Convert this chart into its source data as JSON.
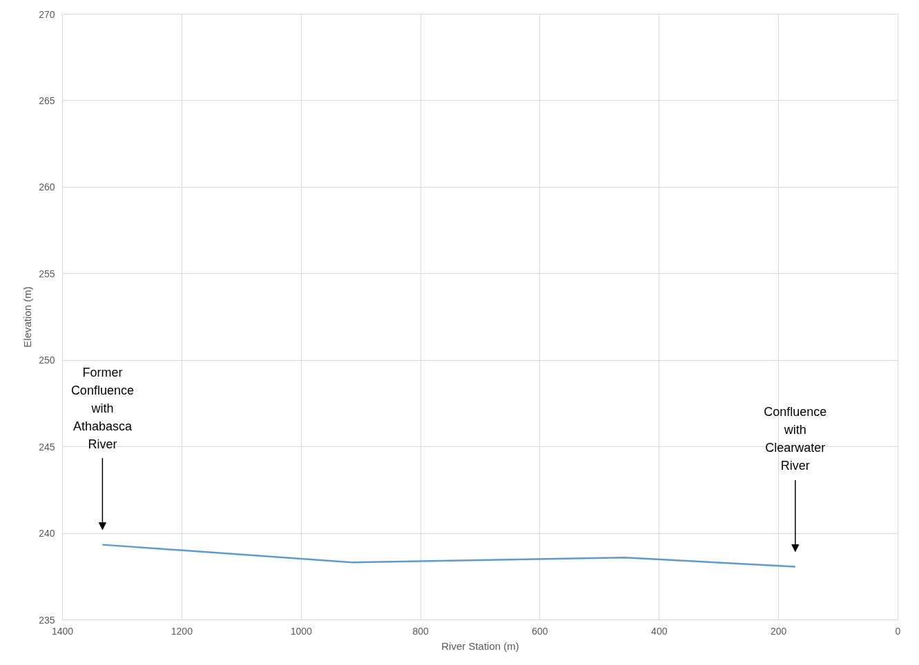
{
  "chart_data": {
    "type": "line",
    "xlabel": "River Station (m)",
    "ylabel": "Elevation (m)",
    "x": [
      1333,
      914,
      458,
      172
    ],
    "series": [
      {
        "color": "#5b9bd5",
        "values": [
          239.34,
          238.32,
          238.6,
          238.07
        ]
      }
    ],
    "xlim": [
      1400,
      0
    ],
    "xticks": [
      1400,
      1200,
      1000,
      800,
      600,
      400,
      200,
      0
    ],
    "ylim": [
      235,
      270
    ],
    "yticks": [
      235,
      240,
      245,
      250,
      255,
      260,
      265,
      270
    ],
    "grid": true,
    "marker": "none",
    "line_style": "solid",
    "annotations": [
      "Former\nConfluence\nwith\nAthabasca\nRiver",
      "Confluence\nwith\nClearwater\nRiver"
    ]
  }
}
